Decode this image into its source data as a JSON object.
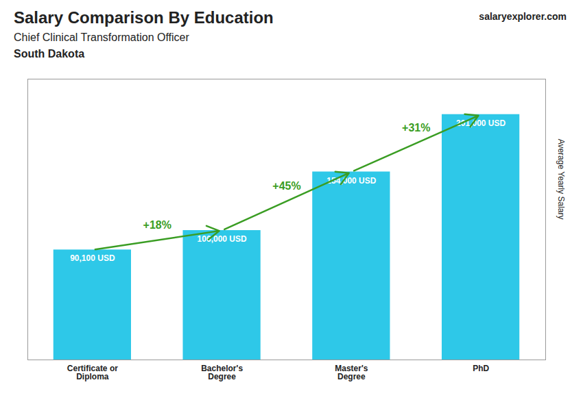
{
  "chart_data": {
    "type": "bar",
    "title": "Salary Comparison By Education",
    "subtitle": "Chief Clinical Transformation Officer",
    "annotations": [
      "South Dakota",
      "salaryexplorer.com"
    ],
    "categories": [
      "Certificate or\nDiploma",
      "Bachelor's\nDegree",
      "Master's\nDegree",
      "PhD"
    ],
    "values": [
      90100,
      106000,
      154000,
      201000
    ],
    "value_labels": [
      "90,100 USD",
      "106,000 USD",
      "154,000 USD",
      "201,000 USD"
    ],
    "data_labels": true,
    "change_labels": [
      "+18%",
      "+45%",
      "+31%"
    ],
    "color": "#2ec8e8",
    "ylabel": "Average Yearly Salary",
    "ylim": [
      0,
      230000
    ],
    "tick_labels": "x",
    "grid": false
  }
}
